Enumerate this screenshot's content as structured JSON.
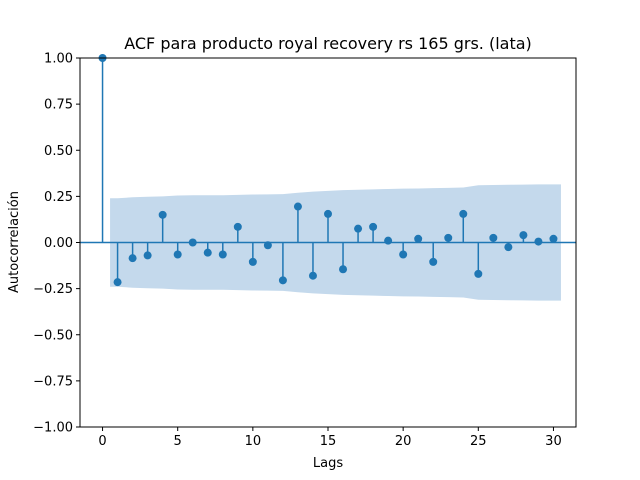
{
  "chart_data": {
    "type": "stem",
    "title": "ACF para producto royal recovery rs 165 grs. (lata)",
    "xlabel": "Lags",
    "ylabel": "Autocorrelación",
    "xlim": [
      -1.5,
      31.5
    ],
    "ylim": [
      -1.0,
      1.0
    ],
    "x_ticks": [
      0,
      5,
      10,
      15,
      20,
      25,
      30
    ],
    "y_ticks": [
      -1.0,
      -0.75,
      -0.5,
      -0.25,
      0.0,
      0.25,
      0.5,
      0.75,
      1.0
    ],
    "x_tick_labels": [
      "0",
      "5",
      "10",
      "15",
      "20",
      "25",
      "30"
    ],
    "y_tick_labels": [
      "−1.00",
      "−0.75",
      "−0.50",
      "−0.25",
      "0.00",
      "0.25",
      "0.50",
      "0.75",
      "1.00"
    ],
    "lags": [
      0,
      1,
      2,
      3,
      4,
      5,
      6,
      7,
      8,
      9,
      10,
      11,
      12,
      13,
      14,
      15,
      16,
      17,
      18,
      19,
      20,
      21,
      22,
      23,
      24,
      25,
      26,
      27,
      28,
      29,
      30
    ],
    "values": [
      1.0,
      -0.215,
      -0.085,
      -0.07,
      0.15,
      -0.065,
      0.0,
      -0.055,
      -0.065,
      0.085,
      -0.105,
      -0.015,
      -0.205,
      0.195,
      -0.18,
      0.155,
      -0.145,
      0.075,
      0.085,
      0.01,
      -0.065,
      0.02,
      -0.105,
      0.025,
      0.155,
      -0.17,
      0.025,
      -0.025,
      0.04,
      0.005,
      0.02
    ],
    "confint_lags": [
      0.5,
      1,
      2,
      3,
      4,
      5,
      6,
      7,
      8,
      9,
      10,
      11,
      12,
      13,
      14,
      15,
      16,
      17,
      18,
      19,
      20,
      21,
      22,
      23,
      24,
      25,
      26,
      27,
      28,
      29,
      30,
      30.5
    ],
    "confint_upper": [
      0.24,
      0.24,
      0.245,
      0.248,
      0.25,
      0.255,
      0.256,
      0.256,
      0.256,
      0.258,
      0.26,
      0.261,
      0.262,
      0.27,
      0.276,
      0.28,
      0.284,
      0.286,
      0.288,
      0.29,
      0.292,
      0.293,
      0.295,
      0.296,
      0.298,
      0.31,
      0.312,
      0.313,
      0.314,
      0.315,
      0.315,
      0.315
    ],
    "colors": {
      "stem": "#1f77b4",
      "band": "#c4d9ec",
      "axis": "#000000"
    }
  }
}
